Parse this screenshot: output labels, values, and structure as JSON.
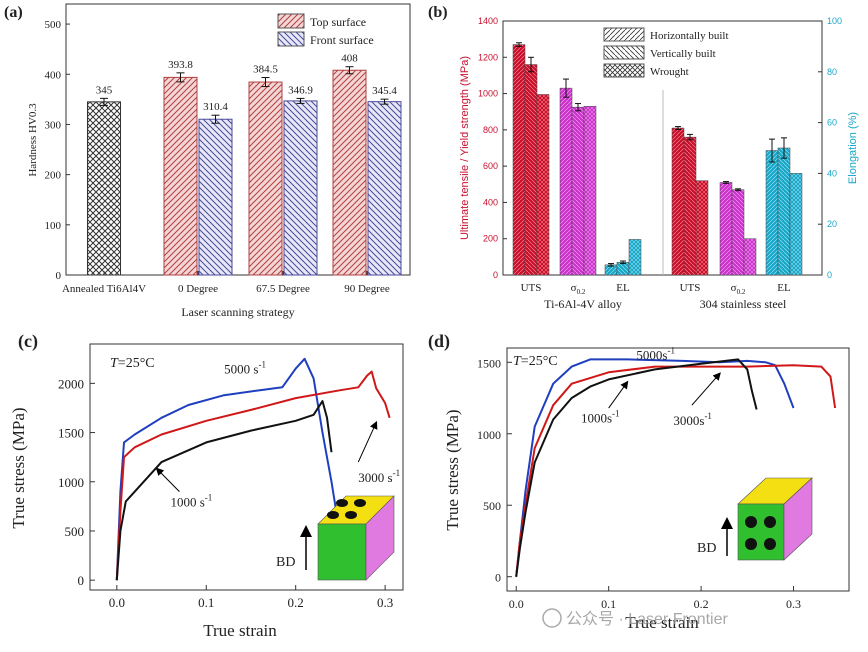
{
  "chart_data": [
    {
      "panel": "(a)",
      "type": "bar",
      "ylabel": "Hardness HV0.3",
      "xlabel": "Laser scanning strategy",
      "ylim": [
        0,
        500
      ],
      "yticks": [
        0,
        100,
        200,
        300,
        400,
        500
      ],
      "categories": [
        "Annealed Ti6Al4V",
        "0 Degree",
        "67.5 Degree",
        "90 Degree"
      ],
      "series": [
        {
          "name": "Annealed",
          "values": [
            345,
            null,
            null,
            null
          ],
          "errors": [
            7,
            null,
            null,
            null
          ],
          "labels": [
            "345",
            "",
            "",
            ""
          ]
        },
        {
          "name": "Top surface",
          "values": [
            null,
            393.8,
            384.5,
            408
          ],
          "errors": [
            null,
            9,
            9,
            7
          ],
          "labels": [
            "",
            "393.8",
            "384.5",
            "408"
          ]
        },
        {
          "name": "Front surface",
          "values": [
            null,
            310.4,
            346.9,
            345.4
          ],
          "errors": [
            null,
            8,
            5,
            5
          ],
          "labels": [
            "",
            "310.4",
            "346.9",
            "345.4"
          ]
        }
      ],
      "legend": [
        "Top surface",
        "Front surface"
      ]
    },
    {
      "panel": "(b)",
      "type": "bar",
      "ylabel_left": "Ultimate tensile / Yield strength (MPa)",
      "ylabel_right": "Elongation (%)",
      "ylim_left": [
        0,
        1400
      ],
      "yticks_left": [
        0,
        200,
        400,
        600,
        800,
        1000,
        1200,
        1400
      ],
      "ylim_right": [
        0,
        100
      ],
      "yticks_right": [
        0,
        20,
        40,
        60,
        80,
        100
      ],
      "groups": [
        "Ti-6Al-4V alloy",
        "304 stainless steel"
      ],
      "categories": [
        "UTS",
        "σ0.2",
        "EL",
        "UTS",
        "σ0.2",
        "EL"
      ],
      "category_main": [
        "UTS",
        "σ",
        "EL",
        "UTS",
        "σ",
        "EL"
      ],
      "category_sub": [
        "",
        "0.2",
        "",
        "",
        "0.2",
        ""
      ],
      "series": [
        {
          "name": "Horizontally built",
          "values": [
            1270,
            1030,
            4,
            810,
            510,
            49
          ],
          "errors": [
            10,
            50,
            0.5,
            8,
            5,
            4.5
          ]
        },
        {
          "name": "Vertically built",
          "values": [
            1160,
            925,
            5,
            760,
            470,
            50
          ],
          "errors": [
            40,
            20,
            0.5,
            15,
            5,
            4
          ]
        },
        {
          "name": "Wrought",
          "values": [
            995,
            930,
            14,
            520,
            200,
            40
          ],
          "errors": [
            null,
            null,
            null,
            null,
            null,
            null
          ]
        }
      ],
      "legend": [
        "Horizontally built",
        "Vertically built",
        "Wrought"
      ],
      "colors": {
        "strength": "#c8102e",
        "yield": "#cc33cc",
        "elongation": "#1aa8c8"
      }
    },
    {
      "panel": "(c)",
      "type": "line",
      "annotation": "T=25°C",
      "xlabel": "True strain",
      "ylabel": "True stress (MPa)",
      "xlim": [
        -0.03,
        0.32
      ],
      "ylim": [
        -100,
        2400
      ],
      "xticks": [
        0.0,
        0.1,
        0.2,
        0.3
      ],
      "yticks": [
        0,
        500,
        1000,
        1500,
        2000
      ],
      "xtick_labels": [
        "0.0",
        "0.1",
        "0.2",
        "0.3"
      ],
      "ytick_labels": [
        "0",
        "500",
        "1000",
        "1500",
        "2000"
      ],
      "series": [
        {
          "name": "5000 s-1",
          "label_main": "5000 s",
          "label_sup": "-1",
          "color": "#1f3fbf",
          "x": [
            0.0,
            0.004,
            0.008,
            0.02,
            0.05,
            0.08,
            0.12,
            0.16,
            0.185,
            0.2,
            0.21,
            0.22,
            0.23,
            0.24,
            0.255
          ],
          "y": [
            0,
            900,
            1400,
            1480,
            1650,
            1780,
            1880,
            1930,
            1960,
            2150,
            2250,
            2050,
            1500,
            1000,
            150
          ]
        },
        {
          "name": "3000 s-1",
          "label_main": "3000 s",
          "label_sup": "-1",
          "color": "#d01818",
          "x": [
            0.0,
            0.004,
            0.008,
            0.02,
            0.05,
            0.1,
            0.15,
            0.2,
            0.25,
            0.27,
            0.28,
            0.285,
            0.29,
            0.3,
            0.305
          ],
          "y": [
            0,
            700,
            1250,
            1350,
            1480,
            1620,
            1730,
            1850,
            1930,
            1960,
            2080,
            2120,
            1950,
            1800,
            1650
          ]
        },
        {
          "name": "1000 s-1",
          "label_main": "1000 s",
          "label_sup": "-1",
          "color": "#111111",
          "x": [
            0.0,
            0.004,
            0.01,
            0.025,
            0.05,
            0.1,
            0.15,
            0.2,
            0.22,
            0.23,
            0.235,
            0.24
          ],
          "y": [
            0,
            500,
            800,
            950,
            1200,
            1400,
            1520,
            1620,
            1680,
            1820,
            1650,
            1300
          ]
        }
      ],
      "label_positions_data": [
        [
          0.12,
          2100
        ],
        [
          0.27,
          1000
        ],
        [
          0.06,
          750
        ]
      ],
      "inset_label": "BD"
    },
    {
      "panel": "(d)",
      "type": "line",
      "annotation": "T=25°C",
      "xlabel": "True strain",
      "ylabel": "True stress (MPa)",
      "xlim": [
        -0.01,
        0.36
      ],
      "ylim": [
        -100,
        1600
      ],
      "xticks": [
        0.0,
        0.1,
        0.2,
        0.3
      ],
      "yticks": [
        0,
        500,
        1000,
        1500
      ],
      "xtick_labels": [
        "0.0",
        "0.1",
        "0.2",
        "0.3"
      ],
      "ytick_labels": [
        "0",
        "500",
        "1000",
        "1500"
      ],
      "series": [
        {
          "name": "5000 s-1",
          "label_main": "5000s",
          "label_sup": "-1",
          "color": "#1f3fbf",
          "x": [
            0.0,
            0.004,
            0.01,
            0.02,
            0.04,
            0.06,
            0.08,
            0.12,
            0.18,
            0.22,
            0.25,
            0.27,
            0.28,
            0.29,
            0.3
          ],
          "y": [
            0,
            250,
            600,
            1050,
            1350,
            1470,
            1520,
            1520,
            1510,
            1500,
            1510,
            1500,
            1480,
            1350,
            1180
          ]
        },
        {
          "name": "3000 s-1",
          "label_main": "3000s",
          "label_sup": "-1",
          "color": "#d01818",
          "x": [
            0.0,
            0.004,
            0.01,
            0.02,
            0.04,
            0.06,
            0.1,
            0.15,
            0.2,
            0.25,
            0.3,
            0.33,
            0.34,
            0.345
          ],
          "y": [
            0,
            250,
            500,
            900,
            1200,
            1350,
            1430,
            1470,
            1470,
            1470,
            1480,
            1470,
            1400,
            1180
          ]
        },
        {
          "name": "1000 s-1",
          "label_main": "1000s",
          "label_sup": "-1",
          "color": "#111111",
          "x": [
            0.0,
            0.004,
            0.01,
            0.02,
            0.04,
            0.06,
            0.08,
            0.1,
            0.15,
            0.2,
            0.24,
            0.25,
            0.255,
            0.26
          ],
          "y": [
            0,
            200,
            450,
            800,
            1100,
            1250,
            1330,
            1380,
            1450,
            1490,
            1520,
            1450,
            1300,
            1170
          ]
        }
      ],
      "label_positions_data": [
        [
          0.13,
          1520
        ],
        [
          0.17,
          1060
        ],
        [
          0.07,
          1080
        ]
      ],
      "inset_label": "BD"
    }
  ],
  "watermark": "公众号 · Laser Frontier"
}
